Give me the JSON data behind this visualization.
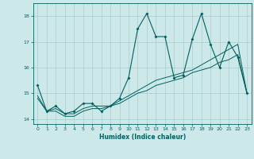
{
  "xlabel": "Humidex (Indice chaleur)",
  "ylabel": "",
  "background_color": "#cce8e8",
  "grid_color": "#aacccc",
  "line_color": "#006060",
  "xlim": [
    -0.5,
    23.5
  ],
  "ylim": [
    13.8,
    18.5
  ],
  "yticks": [
    14,
    15,
    16,
    17,
    18
  ],
  "xticks": [
    0,
    1,
    2,
    3,
    4,
    5,
    6,
    7,
    8,
    9,
    10,
    11,
    12,
    13,
    14,
    15,
    16,
    17,
    18,
    19,
    20,
    21,
    22,
    23
  ],
  "series1_y": [
    15.3,
    14.3,
    14.5,
    14.2,
    14.3,
    14.6,
    14.6,
    14.3,
    14.5,
    14.8,
    15.6,
    17.5,
    18.1,
    17.2,
    17.2,
    15.6,
    15.7,
    17.1,
    18.1,
    16.9,
    16.0,
    17.0,
    16.4,
    15.0
  ],
  "series2_y": [
    14.9,
    14.3,
    14.4,
    14.2,
    14.2,
    14.4,
    14.5,
    14.5,
    14.5,
    14.7,
    14.9,
    15.1,
    15.3,
    15.5,
    15.6,
    15.7,
    15.8,
    15.9,
    16.1,
    16.3,
    16.5,
    16.7,
    16.9,
    15.0
  ],
  "series3_y": [
    14.8,
    14.3,
    14.3,
    14.1,
    14.1,
    14.3,
    14.4,
    14.4,
    14.5,
    14.6,
    14.8,
    15.0,
    15.1,
    15.3,
    15.4,
    15.5,
    15.6,
    15.8,
    15.9,
    16.0,
    16.2,
    16.3,
    16.5,
    15.0
  ]
}
